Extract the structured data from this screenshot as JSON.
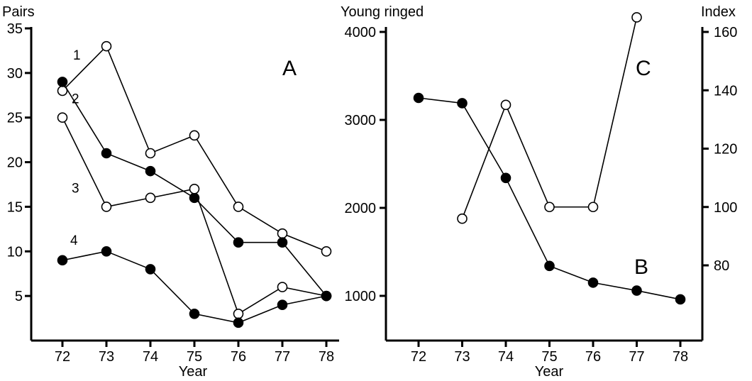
{
  "chart_data": [
    {
      "panel": "A",
      "type": "line",
      "ylabel": "Pairs",
      "xlabel": "Year",
      "categories": [
        "72",
        "73",
        "74",
        "75",
        "76",
        "77",
        "78"
      ],
      "yticks": [
        5,
        10,
        15,
        20,
        25,
        30,
        35
      ],
      "ylim": [
        0,
        35
      ],
      "series": [
        {
          "name": "1",
          "marker": "open",
          "values": [
            28,
            33,
            21,
            23,
            15,
            12,
            10
          ]
        },
        {
          "name": "2",
          "marker": "filled",
          "values": [
            29,
            21,
            19,
            16,
            11,
            11,
            5
          ]
        },
        {
          "name": "3",
          "marker": "open",
          "values": [
            25,
            15,
            16,
            17,
            3,
            6,
            5
          ]
        },
        {
          "name": "4",
          "marker": "filled",
          "values": [
            9,
            10,
            8,
            3,
            2,
            4,
            5
          ]
        }
      ]
    },
    {
      "panel": "B",
      "type": "line",
      "ylabel": "Young ringed",
      "xlabel": "Year",
      "axis": "left",
      "categories": [
        "72",
        "73",
        "74",
        "75",
        "76",
        "77",
        "78"
      ],
      "yticks": [
        1000,
        2000,
        3000,
        4000
      ],
      "series": [
        {
          "name": "B",
          "marker": "filled",
          "values": [
            3250,
            3190,
            2340,
            1340,
            1150,
            1060,
            960
          ]
        }
      ]
    },
    {
      "panel": "C",
      "type": "line",
      "ylabel": "Index",
      "axis": "right",
      "categories": [
        "72",
        "73",
        "74",
        "75",
        "76",
        "77",
        "78"
      ],
      "yticks": [
        80,
        100,
        120,
        140,
        160
      ],
      "series": [
        {
          "name": "C",
          "marker": "open",
          "values": [
            null,
            96,
            135,
            100,
            100,
            165,
            null
          ]
        }
      ]
    }
  ]
}
